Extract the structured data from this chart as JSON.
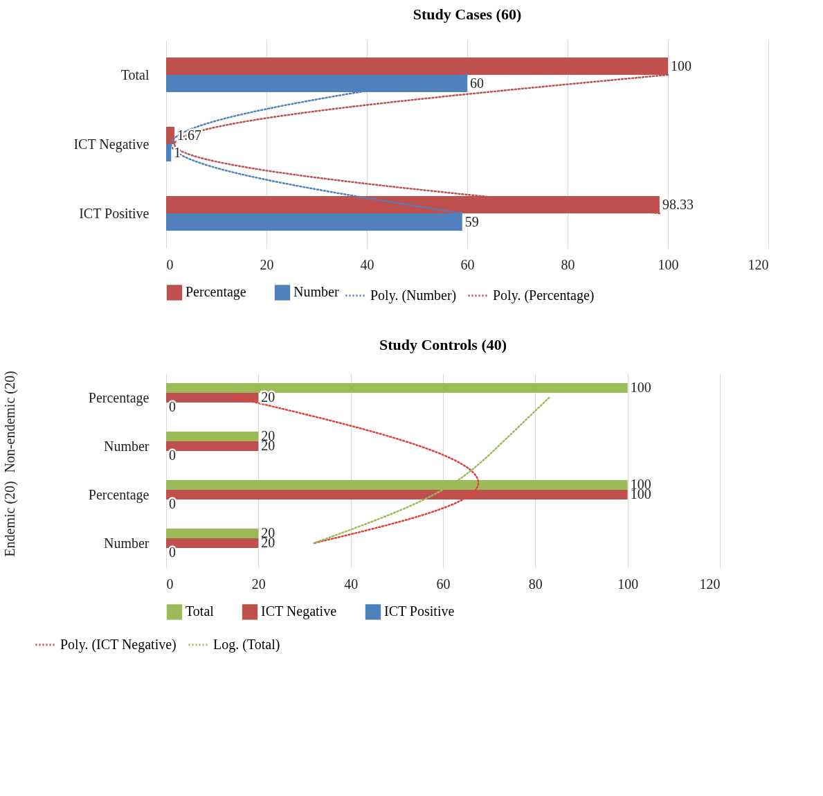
{
  "chart_data": [
    {
      "type": "bar",
      "orientation": "horizontal",
      "title": "Study Cases (60)",
      "categories": [
        "Total",
        "ICT Negative",
        "ICT Positive"
      ],
      "series": [
        {
          "name": "Percentage",
          "color": "#c0504d",
          "values": [
            100,
            1.67,
            98.33
          ],
          "value_labels": [
            "100",
            "1.67",
            "98.33"
          ]
        },
        {
          "name": "Number",
          "color": "#4f81bd",
          "values": [
            60,
            1,
            59
          ],
          "value_labels": [
            "60",
            "1",
            "59"
          ]
        },
        {
          "name": "Poly. (Number)",
          "type": "line",
          "line_style": "dotted",
          "color": "#4f81bd",
          "values": [
            60,
            1,
            59
          ]
        },
        {
          "name": "Poly. (Percentage)",
          "type": "line",
          "line_style": "dotted",
          "color": "#c0504d",
          "values": [
            100,
            1.67,
            98.33
          ]
        }
      ],
      "xlim": [
        0,
        120
      ],
      "xticks": [
        0,
        20,
        40,
        60,
        80,
        100,
        120
      ],
      "grid": "x",
      "legend": "bottom"
    },
    {
      "type": "bar",
      "orientation": "horizontal",
      "title": "Study Controls (40)",
      "categories": [
        "Percentage",
        "Number",
        "Percentage",
        "Number"
      ],
      "annotations": [
        "Non-endemic (20)",
        "Endemic (20)"
      ],
      "series": [
        {
          "name": "Total",
          "color": "#9bbb59",
          "values": [
            100,
            20,
            100,
            20
          ],
          "value_labels": [
            "100",
            "20",
            "100",
            "20"
          ]
        },
        {
          "name": "ICT Negative",
          "color": "#c0504d",
          "values": [
            20,
            20,
            100,
            20
          ],
          "value_labels": [
            "20",
            "20",
            "100",
            "20"
          ]
        },
        {
          "name": "ICT Positive",
          "color": "#4f81bd",
          "values": [
            0,
            0,
            0,
            0
          ],
          "value_labels": [
            "0",
            "0",
            "0",
            "0"
          ]
        },
        {
          "name": "Poly. (ICT Negative)",
          "type": "line",
          "line_style": "dotted",
          "color": "#e0403a",
          "values": [
            15,
            55,
            66,
            32
          ]
        },
        {
          "name": "Log. (Total)",
          "type": "line",
          "line_style": "dotted",
          "color": "#9bbb59",
          "values": [
            83,
            72,
            58,
            32
          ]
        }
      ],
      "xlim": [
        0,
        120
      ],
      "xticks": [
        0,
        20,
        40,
        60,
        80,
        100,
        120
      ],
      "grid": "x",
      "legend": "bottom"
    }
  ]
}
